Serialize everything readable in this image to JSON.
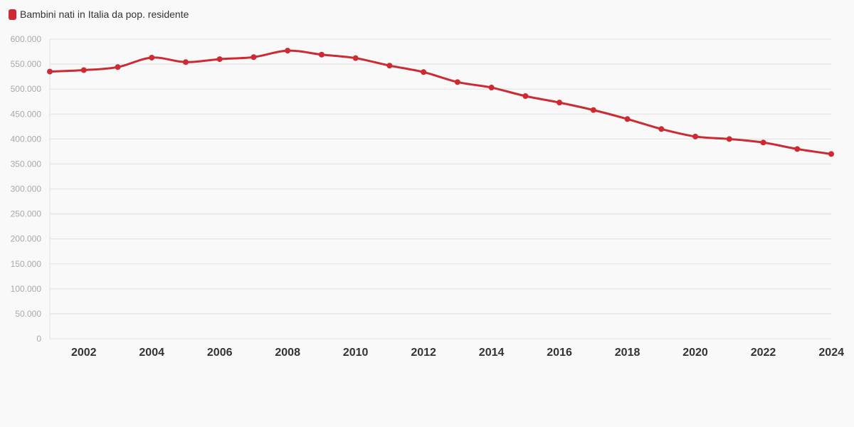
{
  "legend": {
    "label": "Bambini nati in Italia da pop. residente"
  },
  "colors": {
    "series": "#cc2b33",
    "grid": "#e6e6e6",
    "background": "#f9f9f9"
  },
  "chart_data": {
    "type": "line",
    "title": "",
    "xlabel": "",
    "ylabel": "",
    "x": [
      2001,
      2002,
      2003,
      2004,
      2005,
      2006,
      2007,
      2008,
      2009,
      2010,
      2011,
      2012,
      2013,
      2014,
      2015,
      2016,
      2017,
      2018,
      2019,
      2020,
      2021,
      2022,
      2023,
      2024
    ],
    "x_tick_labels": [
      "2002",
      "2004",
      "2006",
      "2008",
      "2010",
      "2012",
      "2014",
      "2016",
      "2018",
      "2020",
      "2022",
      "2024"
    ],
    "y_tick_labels": [
      "0",
      "50.000",
      "100.000",
      "150.000",
      "200.000",
      "250.000",
      "300.000",
      "350.000",
      "400.000",
      "450.000",
      "500.000",
      "550.000",
      "600.000"
    ],
    "ylim": [
      0,
      600000
    ],
    "xlim": [
      2001,
      2024
    ],
    "grid": true,
    "legend_position": "top-left",
    "series": [
      {
        "name": "Bambini nati in Italia da pop. residente",
        "values": [
          535000,
          538000,
          544000,
          563000,
          554000,
          560000,
          564000,
          577000,
          569000,
          562000,
          547000,
          534000,
          514000,
          503000,
          486000,
          473000,
          458000,
          440000,
          420000,
          405000,
          400000,
          393000,
          380000,
          370000
        ]
      }
    ]
  }
}
